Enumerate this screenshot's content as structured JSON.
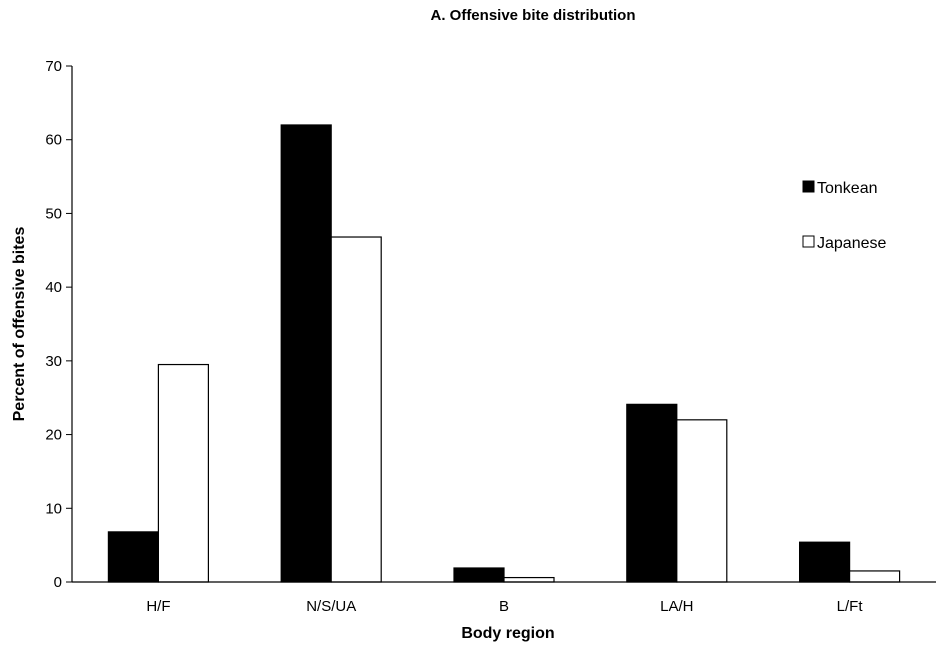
{
  "chart_data": {
    "type": "bar",
    "title": "A. Offensive bite distribution",
    "xlabel": "Body region",
    "ylabel": "Percent of offensive bites",
    "categories": [
      "H/F",
      "N/S/UA",
      "B",
      "LA/H",
      "L/Ft"
    ],
    "series": [
      {
        "name": "Tonkean",
        "values": [
          6.8,
          62.0,
          1.9,
          24.1,
          5.4
        ],
        "color": "#000000"
      },
      {
        "name": "Japanese",
        "values": [
          29.5,
          46.8,
          0.6,
          22.0,
          1.5
        ],
        "color": "#ffffff"
      }
    ],
    "ylim": [
      0,
      70
    ],
    "yticks": [
      0,
      10,
      20,
      30,
      40,
      50,
      60,
      70
    ],
    "grid": false,
    "legend_position": "right"
  }
}
